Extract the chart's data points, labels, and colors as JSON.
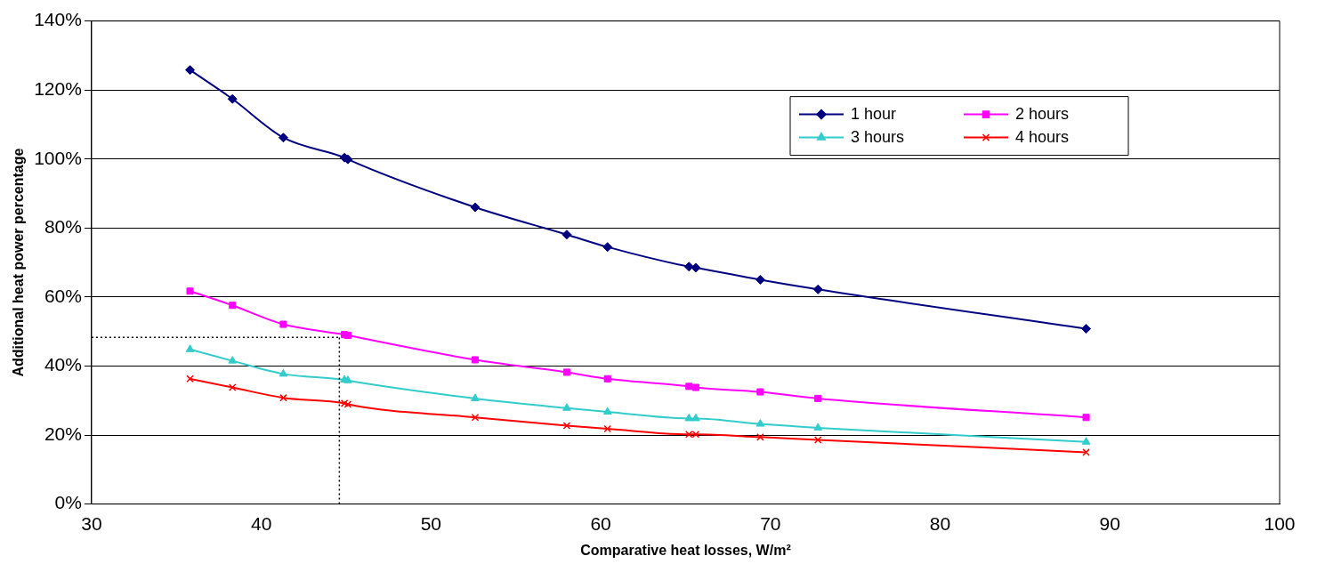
{
  "chart_data": {
    "type": "line",
    "xlabel": "Comparative heat losses, W/m²",
    "ylabel": "Additional heat power percentage",
    "xlim": [
      30,
      100
    ],
    "xticks": [
      30,
      40,
      50,
      60,
      70,
      80,
      90,
      100
    ],
    "ylim": [
      0,
      140
    ],
    "yticks": [
      {
        "value": 0,
        "label": "0%"
      },
      {
        "value": 20,
        "label": "20%"
      },
      {
        "value": 40,
        "label": "40%"
      },
      {
        "value": 60,
        "label": "60%"
      },
      {
        "value": 80,
        "label": "80%"
      },
      {
        "value": 100,
        "label": "100%"
      },
      {
        "value": 120,
        "label": "120%"
      },
      {
        "value": 140,
        "label": "140%"
      }
    ],
    "grid": "y",
    "legend": "top right",
    "x": [
      35.8,
      38.3,
      41.3,
      44.9,
      45.1,
      52.6,
      58.0,
      60.4,
      65.2,
      65.6,
      69.4,
      72.8,
      88.6
    ],
    "series": [
      {
        "name": "1 hour",
        "color": "#000080",
        "marker": "diamond",
        "values": [
          125.8,
          117.4,
          106.2,
          100.4,
          99.9,
          86.0,
          78.1,
          74.5,
          68.8,
          68.5,
          65.0,
          62.2,
          50.8
        ]
      },
      {
        "name": "2 hours",
        "color": "#ff00ff",
        "marker": "square",
        "values": [
          61.7,
          57.6,
          52.1,
          49.1,
          48.9,
          41.8,
          38.2,
          36.3,
          34.1,
          33.8,
          32.5,
          30.6,
          25.1
        ]
      },
      {
        "name": "3 hours",
        "color": "#33cccc",
        "marker": "triangle",
        "values": [
          44.8,
          41.5,
          37.7,
          36.0,
          35.8,
          30.6,
          27.8,
          26.7,
          24.8,
          24.8,
          23.2,
          22.1,
          18.0
        ]
      },
      {
        "name": "4 hours",
        "color": "#ff0000",
        "marker": "cross",
        "values": [
          36.3,
          33.8,
          30.8,
          29.2,
          28.9,
          25.1,
          22.7,
          21.8,
          20.2,
          20.2,
          19.4,
          18.6,
          15.0
        ]
      }
    ],
    "ref_lines": [
      {
        "axis": "x",
        "value": 44.6,
        "color": "#000000",
        "line_style": "dotted"
      },
      {
        "axis": "y",
        "value": 48.3,
        "color": "#000000",
        "line_style": "dotted"
      }
    ]
  }
}
